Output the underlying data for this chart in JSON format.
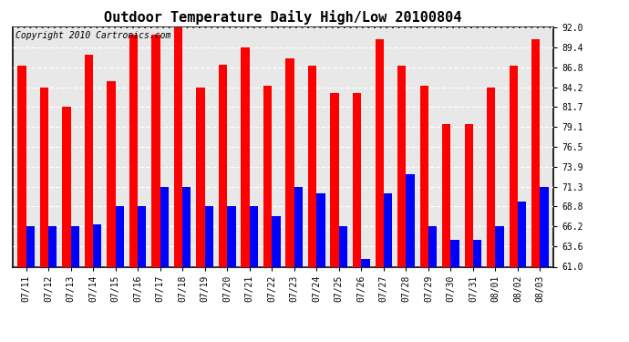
{
  "title": "Outdoor Temperature Daily High/Low 20100804",
  "copyright": "Copyright 2010 Cartronics.com",
  "dates": [
    "07/11",
    "07/12",
    "07/13",
    "07/14",
    "07/15",
    "07/16",
    "07/17",
    "07/18",
    "07/19",
    "07/20",
    "07/21",
    "07/22",
    "07/23",
    "07/24",
    "07/25",
    "07/26",
    "07/27",
    "07/28",
    "07/29",
    "07/30",
    "07/31",
    "08/01",
    "08/02",
    "08/03"
  ],
  "highs": [
    87.0,
    84.2,
    81.7,
    88.5,
    85.0,
    91.0,
    91.0,
    92.0,
    84.2,
    87.2,
    89.4,
    84.5,
    88.0,
    87.0,
    83.5,
    83.5,
    90.5,
    87.0,
    84.5,
    79.5,
    79.5,
    84.2,
    87.0,
    90.5
  ],
  "lows": [
    66.2,
    66.2,
    66.2,
    66.5,
    68.8,
    68.8,
    71.3,
    71.3,
    68.8,
    68.8,
    68.8,
    67.5,
    71.3,
    70.5,
    66.2,
    62.0,
    70.5,
    73.0,
    66.2,
    64.5,
    64.5,
    66.2,
    69.5,
    71.3
  ],
  "high_color": "#ff0000",
  "low_color": "#0000ff",
  "background_color": "#ffffff",
  "plot_bg_color": "#e8e8e8",
  "ylim": [
    61.0,
    92.0
  ],
  "yticks": [
    61.0,
    63.6,
    66.2,
    68.8,
    71.3,
    73.9,
    76.5,
    79.1,
    81.7,
    84.2,
    86.8,
    89.4,
    92.0
  ],
  "title_fontsize": 11,
  "copyright_fontsize": 7,
  "tick_fontsize": 7,
  "bar_width": 0.38
}
